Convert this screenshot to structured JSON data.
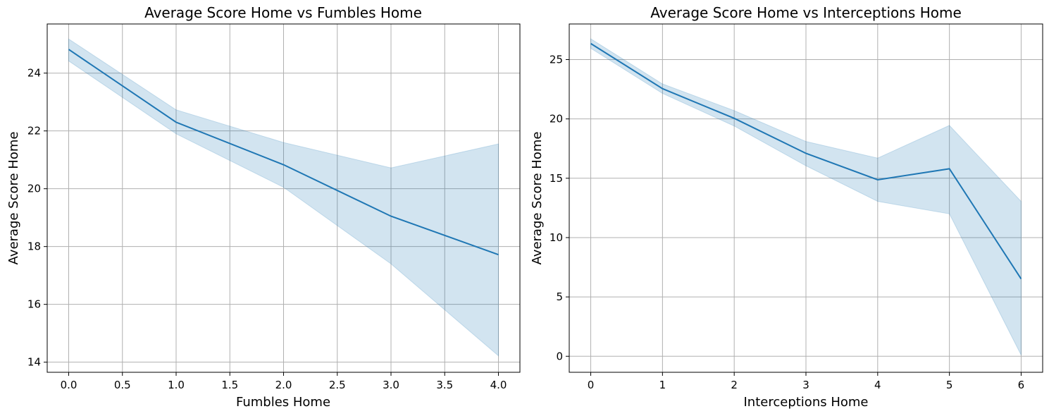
{
  "chart_data": [
    {
      "type": "line",
      "title": "Average Score Home vs Fumbles Home",
      "xlabel": "Fumbles Home",
      "ylabel": "Average Score Home",
      "xlim": [
        -0.2,
        4.2
      ],
      "ylim": [
        13.65,
        25.7
      ],
      "xticks": [
        0.0,
        0.5,
        1.0,
        1.5,
        2.0,
        2.5,
        3.0,
        3.5,
        4.0
      ],
      "xtick_labels": [
        "0.0",
        "0.5",
        "1.0",
        "1.5",
        "2.0",
        "2.5",
        "3.0",
        "3.5",
        "4.0"
      ],
      "yticks": [
        14,
        16,
        18,
        20,
        22,
        24
      ],
      "ytick_labels": [
        "14",
        "16",
        "18",
        "20",
        "22",
        "24"
      ],
      "grid": true,
      "color": "#1f77b4",
      "series": [
        {
          "x": [
            0,
            1,
            2,
            3,
            4
          ],
          "y": [
            24.82,
            22.3,
            20.83,
            19.05,
            17.72
          ],
          "ci_low": [
            24.42,
            21.9,
            20.05,
            17.4,
            14.22
          ],
          "ci_high": [
            25.18,
            22.73,
            21.6,
            20.72,
            21.55
          ]
        }
      ]
    },
    {
      "type": "line",
      "title": "Average Score Home vs Interceptions Home",
      "xlabel": "Interceptions Home",
      "ylabel": "Average Score Home",
      "xlim": [
        -0.3,
        6.3
      ],
      "ylim": [
        -1.35,
        28.0
      ],
      "xticks": [
        0,
        1,
        2,
        3,
        4,
        5,
        6
      ],
      "xtick_labels": [
        "0",
        "1",
        "2",
        "3",
        "4",
        "5",
        "6"
      ],
      "yticks": [
        0,
        5,
        10,
        15,
        20,
        25
      ],
      "ytick_labels": [
        "0",
        "5",
        "10",
        "15",
        "20",
        "25"
      ],
      "grid": true,
      "color": "#1f77b4",
      "series": [
        {
          "x": [
            0,
            1,
            2,
            3,
            4,
            5,
            6
          ],
          "y": [
            26.35,
            22.55,
            20.05,
            17.1,
            14.87,
            15.8,
            6.52
          ],
          "ci_low": [
            25.95,
            22.15,
            19.4,
            16.05,
            13.05,
            12.0,
            0.1
          ],
          "ci_high": [
            26.75,
            22.95,
            20.7,
            18.1,
            16.7,
            19.45,
            13.05
          ]
        }
      ]
    }
  ]
}
